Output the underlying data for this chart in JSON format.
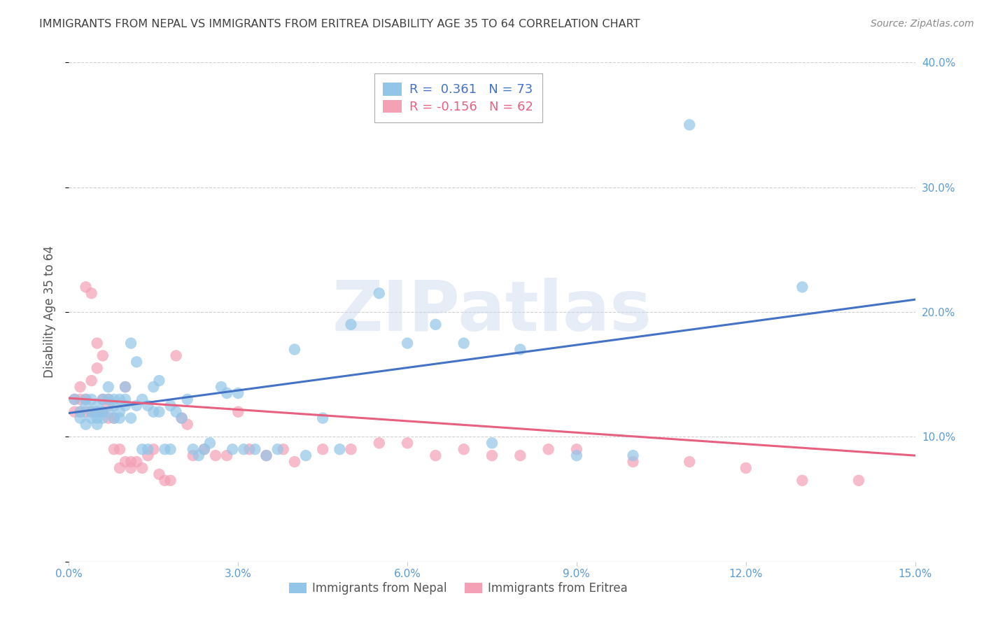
{
  "title": "IMMIGRANTS FROM NEPAL VS IMMIGRANTS FROM ERITREA DISABILITY AGE 35 TO 64 CORRELATION CHART",
  "source": "Source: ZipAtlas.com",
  "ylabel": "Disability Age 35 to 64",
  "xlim": [
    0.0,
    0.15
  ],
  "ylim": [
    0.0,
    0.4
  ],
  "xticks": [
    0.0,
    0.03,
    0.06,
    0.09,
    0.12,
    0.15
  ],
  "xtick_labels": [
    "0.0%",
    "3.0%",
    "6.0%",
    "9.0%",
    "12.0%",
    "15.0%"
  ],
  "yticks": [
    0.0,
    0.1,
    0.2,
    0.3,
    0.4
  ],
  "ytick_labels": [
    "",
    "10.0%",
    "20.0%",
    "30.0%",
    "40.0%"
  ],
  "nepal_color": "#92C5E8",
  "eritrea_color": "#F4A0B5",
  "nepal_R": 0.361,
  "nepal_N": 73,
  "eritrea_R": -0.156,
  "eritrea_N": 62,
  "nepal_line_color": "#4472C4",
  "eritrea_line_color": "#E86080",
  "watermark": "ZIPatlas",
  "nepal_x": [
    0.001,
    0.002,
    0.002,
    0.003,
    0.003,
    0.003,
    0.004,
    0.004,
    0.004,
    0.005,
    0.005,
    0.005,
    0.005,
    0.006,
    0.006,
    0.006,
    0.007,
    0.007,
    0.007,
    0.008,
    0.008,
    0.008,
    0.009,
    0.009,
    0.009,
    0.01,
    0.01,
    0.01,
    0.011,
    0.011,
    0.012,
    0.012,
    0.013,
    0.013,
    0.014,
    0.014,
    0.015,
    0.015,
    0.016,
    0.016,
    0.017,
    0.018,
    0.018,
    0.019,
    0.02,
    0.021,
    0.022,
    0.023,
    0.024,
    0.025,
    0.027,
    0.028,
    0.029,
    0.03,
    0.031,
    0.033,
    0.035,
    0.037,
    0.04,
    0.042,
    0.045,
    0.048,
    0.05,
    0.055,
    0.06,
    0.065,
    0.07,
    0.075,
    0.08,
    0.09,
    0.1,
    0.11,
    0.13
  ],
  "nepal_y": [
    0.13,
    0.12,
    0.115,
    0.11,
    0.125,
    0.13,
    0.115,
    0.12,
    0.13,
    0.11,
    0.12,
    0.125,
    0.115,
    0.13,
    0.12,
    0.115,
    0.14,
    0.13,
    0.12,
    0.125,
    0.115,
    0.13,
    0.12,
    0.115,
    0.13,
    0.14,
    0.125,
    0.13,
    0.175,
    0.115,
    0.125,
    0.16,
    0.09,
    0.13,
    0.125,
    0.09,
    0.14,
    0.12,
    0.12,
    0.145,
    0.09,
    0.125,
    0.09,
    0.12,
    0.115,
    0.13,
    0.09,
    0.085,
    0.09,
    0.095,
    0.14,
    0.135,
    0.09,
    0.135,
    0.09,
    0.09,
    0.085,
    0.09,
    0.17,
    0.085,
    0.115,
    0.09,
    0.19,
    0.215,
    0.175,
    0.19,
    0.175,
    0.095,
    0.17,
    0.085,
    0.085,
    0.35,
    0.22
  ],
  "eritrea_x": [
    0.001,
    0.001,
    0.002,
    0.002,
    0.002,
    0.003,
    0.003,
    0.003,
    0.004,
    0.004,
    0.004,
    0.005,
    0.005,
    0.005,
    0.006,
    0.006,
    0.006,
    0.007,
    0.007,
    0.007,
    0.008,
    0.008,
    0.009,
    0.009,
    0.01,
    0.01,
    0.011,
    0.011,
    0.012,
    0.013,
    0.014,
    0.015,
    0.016,
    0.017,
    0.018,
    0.019,
    0.02,
    0.021,
    0.022,
    0.024,
    0.026,
    0.028,
    0.03,
    0.032,
    0.035,
    0.038,
    0.04,
    0.045,
    0.05,
    0.055,
    0.06,
    0.065,
    0.07,
    0.075,
    0.08,
    0.085,
    0.09,
    0.1,
    0.11,
    0.12,
    0.13,
    0.14
  ],
  "eritrea_y": [
    0.13,
    0.12,
    0.14,
    0.12,
    0.13,
    0.22,
    0.12,
    0.13,
    0.215,
    0.145,
    0.12,
    0.175,
    0.155,
    0.12,
    0.165,
    0.13,
    0.12,
    0.125,
    0.13,
    0.115,
    0.115,
    0.09,
    0.075,
    0.09,
    0.08,
    0.14,
    0.075,
    0.08,
    0.08,
    0.075,
    0.085,
    0.09,
    0.07,
    0.065,
    0.065,
    0.165,
    0.115,
    0.11,
    0.085,
    0.09,
    0.085,
    0.085,
    0.12,
    0.09,
    0.085,
    0.09,
    0.08,
    0.09,
    0.09,
    0.095,
    0.095,
    0.085,
    0.09,
    0.085,
    0.085,
    0.09,
    0.09,
    0.08,
    0.08,
    0.075,
    0.065,
    0.065
  ],
  "background_color": "#ffffff",
  "grid_color": "#d0d0d0",
  "title_color": "#404040",
  "axis_label_color": "#555555",
  "tick_color": "#5B9BD5",
  "legend_border_color": "#aaaaaa"
}
